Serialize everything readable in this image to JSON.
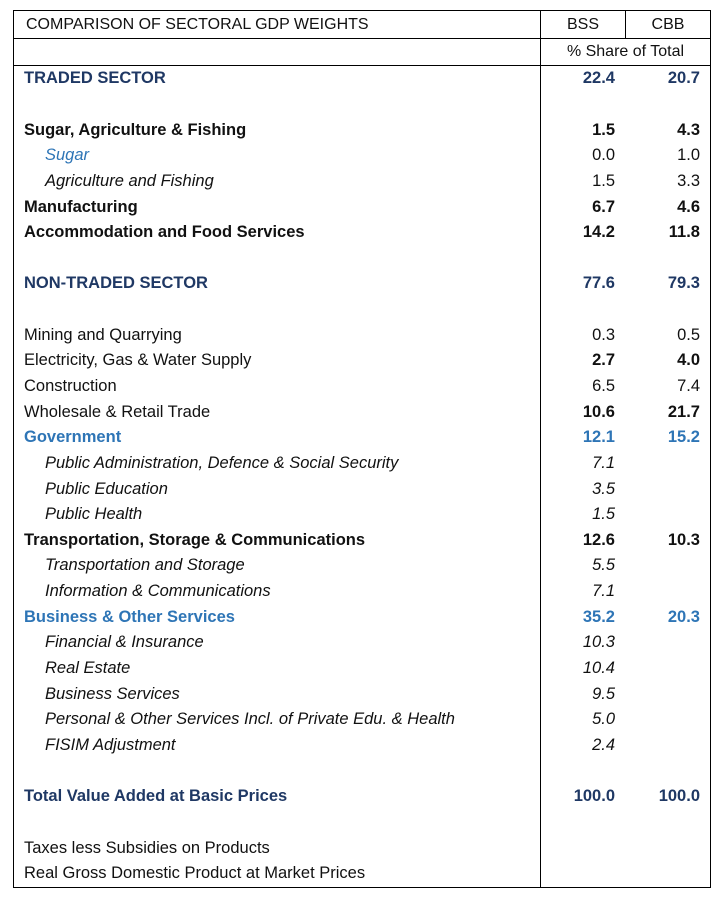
{
  "header": {
    "title": "COMPARISON OF SECTORAL GDP WEIGHTS",
    "col_bss": "BSS",
    "col_cbb": "CBB",
    "subheader": "% Share of Total"
  },
  "colors": {
    "sector": "#1f3864",
    "highlight": "#2e75b6"
  },
  "rows": [
    {
      "kind": "sector",
      "label": "TRADED SECTOR",
      "bss": "22.4",
      "cbb": "20.7"
    },
    {
      "kind": "blank",
      "label": "",
      "bss": "",
      "cbb": ""
    },
    {
      "kind": "bold",
      "label": "Sugar, Agriculture & Fishing",
      "bss": "1.5",
      "cbb": "4.3"
    },
    {
      "kind": "subblue",
      "label": "Sugar",
      "bss": "0.0",
      "cbb": "1.0"
    },
    {
      "kind": "sub",
      "label": "Agriculture and Fishing",
      "bss": "1.5",
      "cbb": "3.3"
    },
    {
      "kind": "bold",
      "label": "Manufacturing",
      "bss": "6.7",
      "cbb": "4.6"
    },
    {
      "kind": "bold",
      "label": "Accommodation and Food Services",
      "bss": "14.2",
      "cbb": "11.8"
    },
    {
      "kind": "blank",
      "label": "",
      "bss": "",
      "cbb": ""
    },
    {
      "kind": "sector",
      "label": "NON-TRADED SECTOR",
      "bss": "77.6",
      "cbb": "79.3"
    },
    {
      "kind": "blank",
      "label": "",
      "bss": "",
      "cbb": ""
    },
    {
      "kind": "plain",
      "label": "Mining and Quarrying",
      "bss": "0.3",
      "cbb": "0.5"
    },
    {
      "kind": "plainboldval",
      "label": "Electricity, Gas & Water Supply",
      "bss": "2.7",
      "cbb": "4.0"
    },
    {
      "kind": "plain",
      "label": "Construction",
      "bss": "6.5",
      "cbb": "7.4"
    },
    {
      "kind": "plainboldval",
      "label": "Wholesale & Retail Trade",
      "bss": "10.6",
      "cbb": "21.7"
    },
    {
      "kind": "blue",
      "label": "Government",
      "bss": "12.1",
      "cbb": "15.2"
    },
    {
      "kind": "subi",
      "label": "Public Administration, Defence & Social Security",
      "bss": "7.1",
      "cbb": ""
    },
    {
      "kind": "subi",
      "label": "Public Education",
      "bss": "3.5",
      "cbb": ""
    },
    {
      "kind": "subi",
      "label": "Public Health",
      "bss": "1.5",
      "cbb": ""
    },
    {
      "kind": "bold",
      "label": "Transportation, Storage & Communications",
      "bss": "12.6",
      "cbb": "10.3"
    },
    {
      "kind": "subi",
      "label": "Transportation and Storage",
      "bss": "5.5",
      "cbb": ""
    },
    {
      "kind": "subi",
      "label": "Information & Communications",
      "bss": "7.1",
      "cbb": ""
    },
    {
      "kind": "blue",
      "label": "Business & Other Services",
      "bss": "35.2",
      "cbb": "20.3"
    },
    {
      "kind": "subi",
      "label": "Financial & Insurance",
      "bss": "10.3",
      "cbb": ""
    },
    {
      "kind": "subi",
      "label": "Real Estate",
      "bss": "10.4",
      "cbb": ""
    },
    {
      "kind": "subi",
      "label": "Business Services",
      "bss": "9.5",
      "cbb": ""
    },
    {
      "kind": "subi",
      "label": "Personal & Other Services Incl. of Private Edu. & Health",
      "bss": "5.0",
      "cbb": ""
    },
    {
      "kind": "subi",
      "label": "FISIM Adjustment",
      "bss": "2.4",
      "cbb": ""
    },
    {
      "kind": "blank",
      "label": "",
      "bss": "",
      "cbb": ""
    },
    {
      "kind": "sector",
      "label": "Total Value Added at Basic Prices",
      "bss": "100.0",
      "cbb": "100.0"
    },
    {
      "kind": "blank",
      "label": "",
      "bss": "",
      "cbb": ""
    },
    {
      "kind": "plain",
      "label": "Taxes less Subsidies on Products",
      "bss": "",
      "cbb": ""
    },
    {
      "kind": "plain",
      "label": "Real Gross Domestic Product at Market Prices",
      "bss": "",
      "cbb": ""
    }
  ]
}
